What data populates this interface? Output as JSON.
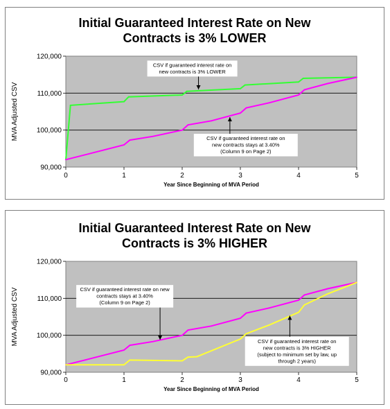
{
  "chart_data": [
    {
      "type": "line",
      "title_lines": [
        "Initial Guaranteed Interest Rate on New",
        "Contracts is 3% LOWER"
      ],
      "xlabel": "Year Since Beginning of MVA Period",
      "ylabel": "MVA Adjusted CSV",
      "xlim": [
        0,
        5
      ],
      "ylim": [
        90000,
        120000
      ],
      "x_ticks": [
        0,
        1,
        2,
        3,
        4,
        5
      ],
      "y_ticks": [
        90000,
        100000,
        110000,
        120000
      ],
      "y_tick_labels": [
        "90,000",
        "100,000",
        "110,000",
        "120,000"
      ],
      "grid": true,
      "background": "#c0c0c0",
      "series": [
        {
          "color": "#33ff33",
          "points": [
            [
              0,
              92000
            ],
            [
              0.08,
              106700
            ],
            [
              1.0,
              107700
            ],
            [
              1.08,
              109000
            ],
            [
              2.0,
              109500
            ],
            [
              2.08,
              110500
            ],
            [
              3.0,
              111200
            ],
            [
              3.08,
              112200
            ],
            [
              4.0,
              113000
            ],
            [
              4.08,
              114000
            ],
            [
              5.0,
              114300
            ]
          ]
        },
        {
          "color": "#ff00ff",
          "points": [
            [
              0,
              92000
            ],
            [
              0.5,
              94000
            ],
            [
              1.0,
              96000
            ],
            [
              1.1,
              97300
            ],
            [
              1.5,
              98300
            ],
            [
              2.0,
              100000
            ],
            [
              2.1,
              101400
            ],
            [
              2.5,
              102500
            ],
            [
              3.0,
              104600
            ],
            [
              3.1,
              106000
            ],
            [
              3.5,
              107400
            ],
            [
              4.0,
              109500
            ],
            [
              4.1,
              110900
            ],
            [
              4.5,
              112600
            ],
            [
              5.0,
              114300
            ]
          ]
        }
      ],
      "annotations": [
        {
          "lines": [
            "CSV if guaranteed interest rate on",
            "new contracts is 3% LOWER"
          ],
          "box_x": 1.4,
          "box_y": 118800,
          "arrow_to": [
            2.28,
            111000
          ]
        },
        {
          "lines": [
            "CSV if guaranteed interest rate on",
            "new contracts stays at 3.40%",
            "(Column 9 on Page 2)"
          ],
          "box_x": 2.2,
          "box_y": 99000,
          "arrow_to": [
            2.82,
            103500
          ]
        }
      ]
    },
    {
      "type": "line",
      "title_lines": [
        "Initial Guaranteed Interest Rate on New",
        "Contracts is 3% HIGHER"
      ],
      "xlabel": "Year Since Beginning of MVA Period",
      "ylabel": "MVA Adjusted CSV",
      "xlim": [
        0,
        5
      ],
      "ylim": [
        90000,
        120000
      ],
      "x_ticks": [
        0,
        1,
        2,
        3,
        4,
        5
      ],
      "y_ticks": [
        90000,
        100000,
        110000,
        120000
      ],
      "y_tick_labels": [
        "90,000",
        "100,000",
        "110,000",
        "120,000"
      ],
      "grid": true,
      "background": "#c0c0c0",
      "series": [
        {
          "color": "#ff00ff",
          "points": [
            [
              0,
              92000
            ],
            [
              0.5,
              94000
            ],
            [
              1.0,
              96000
            ],
            [
              1.1,
              97300
            ],
            [
              1.5,
              98300
            ],
            [
              2.0,
              100000
            ],
            [
              2.1,
              101400
            ],
            [
              2.5,
              102500
            ],
            [
              3.0,
              104600
            ],
            [
              3.1,
              106000
            ],
            [
              3.5,
              107400
            ],
            [
              4.0,
              109500
            ],
            [
              4.1,
              110900
            ],
            [
              4.5,
              112600
            ],
            [
              5.0,
              114300
            ]
          ]
        },
        {
          "color": "#ffff33",
          "points": [
            [
              0,
              92000
            ],
            [
              1.0,
              92000
            ],
            [
              1.1,
              93300
            ],
            [
              2.0,
              93100
            ],
            [
              2.1,
              94100
            ],
            [
              2.25,
              94200
            ],
            [
              3.0,
              99000
            ],
            [
              3.1,
              100400
            ],
            [
              3.5,
              102800
            ],
            [
              4.0,
              106200
            ],
            [
              4.1,
              108200
            ],
            [
              4.5,
              111200
            ],
            [
              5.0,
              114300
            ]
          ]
        }
      ],
      "annotations": [
        {
          "lines": [
            "CSV if guaranteed interest rate on new",
            "contracts stays at 3.40%",
            "(Column 9 on Page 2)"
          ],
          "box_x": 0.18,
          "box_y": 113600,
          "arrow_to": [
            1.62,
            98800
          ]
        },
        {
          "lines": [
            "CSV if guaranteed interest rate on",
            "new contracts is 3% HIGHER",
            "(subject to minimum set by law, up",
            "through 2 years)"
          ],
          "box_x": 3.08,
          "box_y": 99600,
          "arrow_to": [
            3.85,
            105300
          ]
        }
      ]
    }
  ]
}
